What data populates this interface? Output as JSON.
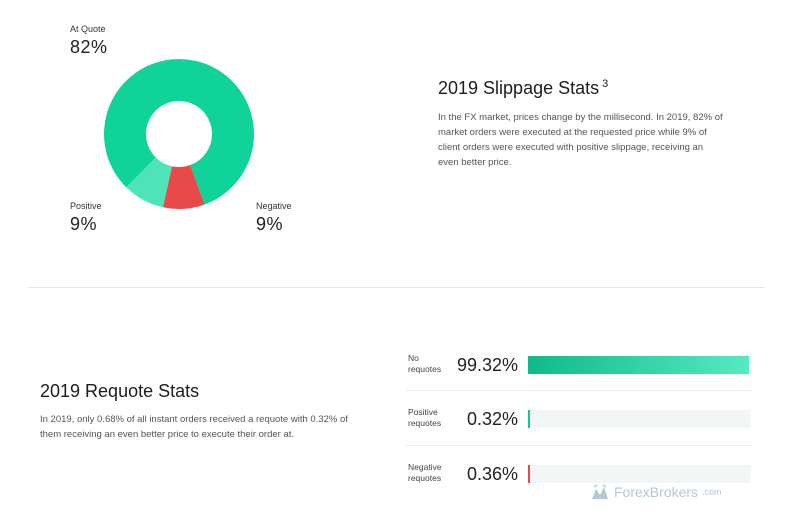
{
  "slippage": {
    "title": "2019 Slippage Stats",
    "footnote": "3",
    "description": "In the FX market, prices change by the millisecond. In 2019, 82% of market orders were executed at the requested price while 9% of client orders were executed with positive slippage, receiving an even better price.",
    "labels": {
      "at_quote": "At Quote",
      "at_quote_value": "82%",
      "positive": "Positive",
      "positive_value": "9%",
      "negative": "Negative",
      "negative_value": "9%"
    }
  },
  "requote": {
    "title": "2019 Requote Stats",
    "description": "In 2019, only 0.68% of all instant orders received a requote with 0.32% of them receiving an even better price to execute their order at.",
    "rows": [
      {
        "label": "No requotes",
        "value": "99.32%",
        "fraction": 0.9932
      },
      {
        "label": "Positive requotes",
        "value": "0.32%",
        "fraction": 0.0032
      },
      {
        "label": "Negative requotes",
        "value": "0.36%",
        "fraction": 0.0036
      }
    ]
  },
  "chart_data": {
    "type": "pie",
    "categories": [
      "At Quote",
      "Positive",
      "Negative"
    ],
    "values": [
      82,
      9,
      9
    ],
    "colors": [
      "#10d39a",
      "#4fe3b8",
      "#e84a4a"
    ],
    "title": "2019 Slippage Stats"
  },
  "watermark": {
    "brand": "ForexBrokers",
    "suffix": ".com"
  }
}
